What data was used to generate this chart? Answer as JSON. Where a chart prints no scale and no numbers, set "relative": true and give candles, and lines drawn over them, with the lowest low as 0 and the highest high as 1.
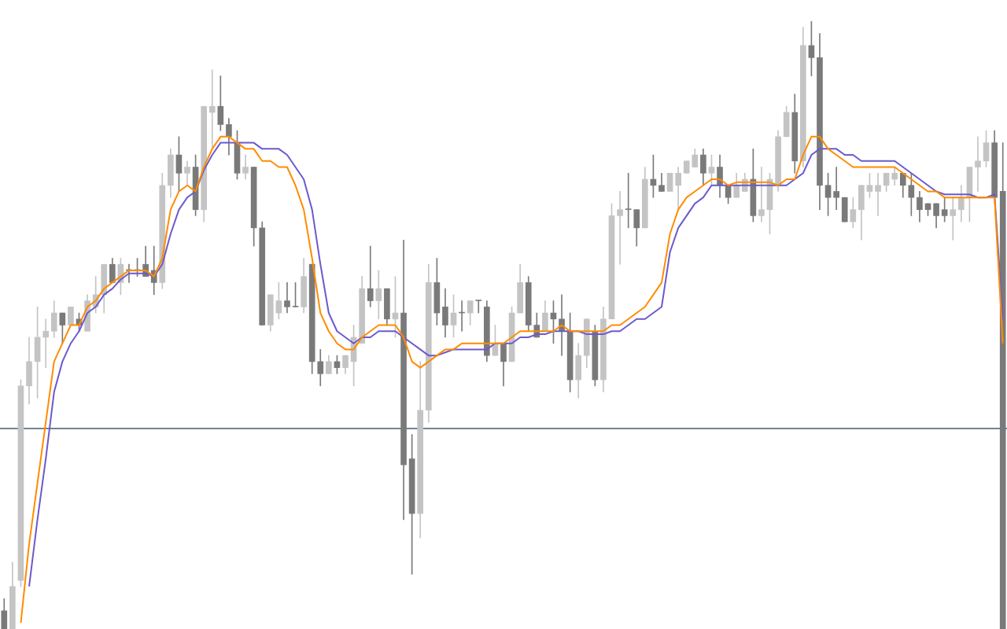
{
  "chart_data": {
    "type": "candlestick",
    "relative": true,
    "categories": [
      null,
      null,
      null,
      null,
      null,
      null,
      null,
      null,
      null,
      null,
      null,
      null,
      null,
      null,
      null,
      null,
      null,
      null,
      null,
      null,
      null,
      null,
      null,
      null,
      null,
      null,
      null,
      null,
      null,
      null,
      null,
      null,
      null,
      null,
      null,
      null,
      null,
      null,
      null,
      null,
      null,
      null,
      null,
      null,
      null,
      null,
      null,
      null,
      null,
      null,
      null,
      null,
      null,
      null,
      null,
      null,
      null,
      null,
      null,
      null,
      null,
      null,
      null,
      null,
      null,
      null,
      null,
      null,
      null,
      null,
      null,
      null,
      null,
      null,
      null,
      null,
      null,
      null,
      null,
      null,
      null,
      null,
      null,
      null,
      null,
      null,
      null,
      null,
      null,
      null,
      null,
      null,
      null,
      null,
      null,
      null,
      null,
      null,
      null,
      null,
      null,
      null,
      null,
      null,
      null,
      null,
      null,
      null,
      null,
      null,
      null,
      null,
      null,
      null,
      null,
      null,
      null,
      null,
      null,
      null,
      null
    ],
    "ohlc": [
      [
        0.03,
        0.05,
        0,
        0
      ],
      [
        0,
        0.11,
        0,
        0.07
      ],
      [
        0.08,
        0.41,
        0.07,
        0.4
      ],
      [
        0.4,
        0.48,
        0.37,
        0.44
      ],
      [
        0.44,
        0.53,
        0.38,
        0.48
      ],
      [
        0.48,
        0.51,
        0.43,
        0.49
      ],
      [
        0.49,
        0.54,
        0.48,
        0.52
      ],
      [
        0.52,
        0.52,
        0.47,
        0.5
      ],
      [
        0.5,
        0.53,
        0.5,
        0.53
      ],
      [
        0.51,
        0.52,
        0.49,
        0.5
      ],
      [
        0.49,
        0.55,
        0.49,
        0.54
      ],
      [
        0.53,
        0.58,
        0.52,
        0.55
      ],
      [
        0.55,
        0.6,
        0.52,
        0.6
      ],
      [
        0.6,
        0.61,
        0.57,
        0.57
      ],
      [
        0.57,
        0.61,
        0.55,
        0.6
      ],
      [
        0.59,
        0.6,
        0.57,
        0.59
      ],
      [
        0.59,
        0.61,
        0.58,
        0.59
      ],
      [
        0.6,
        0.63,
        0.58,
        0.58
      ],
      [
        0.59,
        0.63,
        0.55,
        0.57
      ],
      [
        0.57,
        0.75,
        0.56,
        0.73
      ],
      [
        0.73,
        0.79,
        0.71,
        0.78
      ],
      [
        0.78,
        0.81,
        0.72,
        0.75
      ],
      [
        0.75,
        0.77,
        0.73,
        0.76
      ],
      [
        0.76,
        0.78,
        0.68,
        0.69
      ],
      [
        0.69,
        0.86,
        0.67,
        0.86
      ],
      [
        0.85,
        0.92,
        0.79,
        0.86
      ],
      [
        0.86,
        0.91,
        0.82,
        0.83
      ],
      [
        0.83,
        0.84,
        0.78,
        0.81
      ],
      [
        0.8,
        0.82,
        0.74,
        0.75
      ],
      [
        0.75,
        0.78,
        0.74,
        0.76
      ],
      [
        0.76,
        0.76,
        0.63,
        0.66
      ],
      [
        0.66,
        0.67,
        0.5,
        0.5
      ],
      [
        0.5,
        0.55,
        0.49,
        0.55
      ],
      [
        0.52,
        0.57,
        0.51,
        0.54
      ],
      [
        0.54,
        0.57,
        0.52,
        0.53
      ],
      [
        0.53,
        0.57,
        0.53,
        0.53
      ],
      [
        0.53,
        0.61,
        0.52,
        0.58
      ],
      [
        0.6,
        0.6,
        0.42,
        0.44
      ],
      [
        0.44,
        0.46,
        0.4,
        0.42
      ],
      [
        0.42,
        0.45,
        0.42,
        0.44
      ],
      [
        0.44,
        0.45,
        0.42,
        0.43
      ],
      [
        0.43,
        0.45,
        0.42,
        0.45
      ],
      [
        0.44,
        0.5,
        0.4,
        0.48
      ],
      [
        0.47,
        0.58,
        0.47,
        0.56
      ],
      [
        0.56,
        0.63,
        0.53,
        0.54
      ],
      [
        0.54,
        0.59,
        0.51,
        0.56
      ],
      [
        0.56,
        0.56,
        0.5,
        0.51
      ],
      [
        0.51,
        0.58,
        0.48,
        0.52
      ],
      [
        0.52,
        0.64,
        0.18,
        0.27
      ],
      [
        0.28,
        0.32,
        0.09,
        0.19
      ],
      [
        0.19,
        0.44,
        0.15,
        0.36
      ],
      [
        0.36,
        0.6,
        0.34,
        0.57
      ],
      [
        0.57,
        0.61,
        0.5,
        0.52
      ],
      [
        0.53,
        0.56,
        0.48,
        0.5
      ],
      [
        0.5,
        0.55,
        0.48,
        0.52
      ],
      [
        0.52,
        0.54,
        0.49,
        0.52
      ],
      [
        0.52,
        0.54,
        0.5,
        0.54
      ],
      [
        0.54,
        0.54,
        0.52,
        0.54
      ],
      [
        0.53,
        0.54,
        0.44,
        0.45
      ],
      [
        0.45,
        0.5,
        0.45,
        0.47
      ],
      [
        0.47,
        0.47,
        0.4,
        0.44
      ],
      [
        0.44,
        0.53,
        0.44,
        0.52
      ],
      [
        0.52,
        0.6,
        0.52,
        0.57
      ],
      [
        0.57,
        0.58,
        0.49,
        0.5
      ],
      [
        0.5,
        0.52,
        0.48,
        0.48
      ],
      [
        0.49,
        0.54,
        0.49,
        0.52
      ],
      [
        0.52,
        0.54,
        0.47,
        0.51
      ],
      [
        0.51,
        0.55,
        0.45,
        0.49
      ],
      [
        0.49,
        0.52,
        0.39,
        0.41
      ],
      [
        0.41,
        0.47,
        0.38,
        0.45
      ],
      [
        0.45,
        0.51,
        0.43,
        0.51
      ],
      [
        0.49,
        0.5,
        0.4,
        0.41
      ],
      [
        0.41,
        0.53,
        0.39,
        0.51
      ],
      [
        0.51,
        0.7,
        0.51,
        0.68
      ],
      [
        0.68,
        0.72,
        0.6,
        0.69
      ],
      [
        0.69,
        0.75,
        0.66,
        0.69
      ],
      [
        0.69,
        0.69,
        0.63,
        0.66
      ],
      [
        0.66,
        0.76,
        0.66,
        0.74
      ],
      [
        0.74,
        0.78,
        0.71,
        0.73
      ],
      [
        0.73,
        0.75,
        0.72,
        0.72
      ],
      [
        0.72,
        0.75,
        0.72,
        0.75
      ],
      [
        0.73,
        0.76,
        0.69,
        0.75
      ],
      [
        0.75,
        0.77,
        0.75,
        0.77
      ],
      [
        0.76,
        0.79,
        0.76,
        0.78
      ],
      [
        0.78,
        0.79,
        0.73,
        0.75
      ],
      [
        0.75,
        0.78,
        0.73,
        0.76
      ],
      [
        0.76,
        0.78,
        0.71,
        0.73
      ],
      [
        0.73,
        0.73,
        0.7,
        0.71
      ],
      [
        0.71,
        0.75,
        0.71,
        0.73
      ],
      [
        0.72,
        0.75,
        0.72,
        0.74
      ],
      [
        0.74,
        0.79,
        0.67,
        0.68
      ],
      [
        0.68,
        0.76,
        0.67,
        0.69
      ],
      [
        0.69,
        0.75,
        0.65,
        0.74
      ],
      [
        0.73,
        0.82,
        0.72,
        0.81
      ],
      [
        0.81,
        0.86,
        0.81,
        0.85
      ],
      [
        0.85,
        0.88,
        0.75,
        0.77
      ],
      [
        0.77,
        0.99,
        0.76,
        0.96
      ],
      [
        0.96,
        1,
        0.91,
        0.94
      ],
      [
        0.94,
        0.98,
        0.69,
        0.73
      ],
      [
        0.73,
        0.75,
        0.68,
        0.71
      ],
      [
        0.72,
        0.76,
        0.69,
        0.71
      ],
      [
        0.71,
        0.71,
        0.67,
        0.67
      ],
      [
        0.67,
        0.71,
        0.66,
        0.69
      ],
      [
        0.69,
        0.73,
        0.64,
        0.73
      ],
      [
        0.72,
        0.75,
        0.71,
        0.73
      ],
      [
        0.72,
        0.75,
        0.68,
        0.73
      ],
      [
        0.73,
        0.75,
        0.72,
        0.75
      ],
      [
        0.74,
        0.76,
        0.73,
        0.75
      ],
      [
        0.75,
        0.75,
        0.71,
        0.73
      ],
      [
        0.73,
        0.75,
        0.68,
        0.71
      ],
      [
        0.71,
        0.72,
        0.67,
        0.69
      ],
      [
        0.7,
        0.7,
        0.68,
        0.69
      ],
      [
        0.7,
        0.7,
        0.66,
        0.68
      ],
      [
        0.69,
        0.71,
        0.67,
        0.68
      ],
      [
        0.68,
        0.71,
        0.64,
        0.69
      ],
      [
        0.69,
        0.73,
        0.67,
        0.71
      ],
      [
        0.71,
        0.76,
        0.67,
        0.76
      ],
      [
        0.76,
        0.81,
        0.72,
        0.77
      ],
      [
        0.77,
        0.82,
        0.76,
        0.8
      ],
      [
        0.8,
        0.82,
        0.71,
        0.71
      ],
      [
        0.72,
        0.8,
        0,
        0
      ]
    ],
    "series": [
      {
        "type": "line",
        "color": "#ff8c00",
        "values": [
          null,
          null,
          0.01,
          0.14,
          0.24,
          0.34,
          0.44,
          0.47,
          0.5,
          0.5,
          0.53,
          0.54,
          0.56,
          0.57,
          0.58,
          0.59,
          0.59,
          0.59,
          0.58,
          0.61,
          0.69,
          0.72,
          0.73,
          0.72,
          0.76,
          0.79,
          0.81,
          0.81,
          0.8,
          0.79,
          0.79,
          0.77,
          0.77,
          0.76,
          0.76,
          0.73,
          0.69,
          0.61,
          0.52,
          0.49,
          0.47,
          0.46,
          0.46,
          0.48,
          0.49,
          0.5,
          0.5,
          0.5,
          0.48,
          0.44,
          0.43,
          0.44,
          0.45,
          0.46,
          0.46,
          0.47,
          0.47,
          0.47,
          0.47,
          0.47,
          0.47,
          0.48,
          0.49,
          0.49,
          0.49,
          0.49,
          0.49,
          0.5,
          0.49,
          0.49,
          0.49,
          0.49,
          0.49,
          0.5,
          0.5,
          0.51,
          0.52,
          0.53,
          0.55,
          0.57,
          0.65,
          0.69,
          0.71,
          0.72,
          0.73,
          0.74,
          0.74,
          0.73,
          0.735,
          0.735,
          0.735,
          0.735,
          0.735,
          0.73,
          0.74,
          0.74,
          0.78,
          0.81,
          0.81,
          0.79,
          0.78,
          0.77,
          0.76,
          0.76,
          0.76,
          0.76,
          0.76,
          0.76,
          0.75,
          0.74,
          0.73,
          0.72,
          0.72,
          0.71,
          0.71,
          0.71,
          0.71,
          0.71,
          0.71,
          0.71,
          0.47
        ]
      },
      {
        "type": "line",
        "color": "#6a5acd",
        "values": [
          null,
          null,
          null,
          0.07,
          0.18,
          0.28,
          0.39,
          0.44,
          0.47,
          0.49,
          0.52,
          0.53,
          0.55,
          0.56,
          0.575,
          0.585,
          0.585,
          0.585,
          0.58,
          0.6,
          0.65,
          0.69,
          0.71,
          0.72,
          0.755,
          0.78,
          0.8,
          0.8,
          0.8,
          0.8,
          0.8,
          0.79,
          0.79,
          0.79,
          0.78,
          0.76,
          0.74,
          0.69,
          0.6,
          0.52,
          0.49,
          0.48,
          0.47,
          0.48,
          0.48,
          0.49,
          0.49,
          0.49,
          0.48,
          0.47,
          0.46,
          0.45,
          0.45,
          0.455,
          0.46,
          0.46,
          0.46,
          0.46,
          0.46,
          0.47,
          0.47,
          0.47,
          0.48,
          0.48,
          0.485,
          0.485,
          0.49,
          0.49,
          0.49,
          0.49,
          0.485,
          0.485,
          0.485,
          0.49,
          0.49,
          0.5,
          0.51,
          0.51,
          0.52,
          0.53,
          0.62,
          0.66,
          0.68,
          0.7,
          0.71,
          0.73,
          0.73,
          0.73,
          0.73,
          0.73,
          0.73,
          0.73,
          0.73,
          0.73,
          0.73,
          0.74,
          0.75,
          0.78,
          0.79,
          0.79,
          0.79,
          0.78,
          0.78,
          0.77,
          0.77,
          0.77,
          0.77,
          0.77,
          0.76,
          0.75,
          0.74,
          0.73,
          0.72,
          0.715,
          0.715,
          0.715,
          0.715,
          0.71,
          0.71,
          0.715,
          0.51
        ]
      }
    ],
    "ref_lines": [
      {
        "axis": "y",
        "value": 0.33,
        "color": "#6e8595"
      }
    ]
  }
}
